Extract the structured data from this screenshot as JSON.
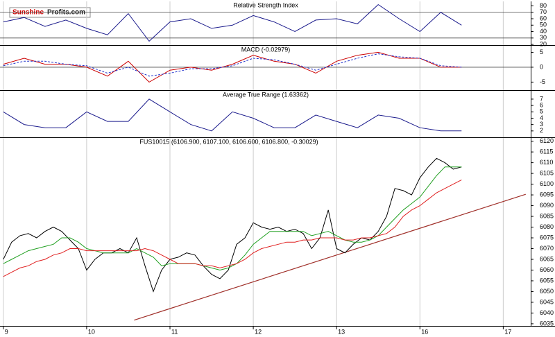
{
  "logo": {
    "part1": "Sunshine",
    "part2": "Profits.com"
  },
  "chart_data": [
    {
      "type": "line",
      "title": "Relative Strength Index",
      "x": [
        0,
        0.25,
        0.5,
        0.75,
        1,
        1.25,
        1.5,
        1.75,
        2,
        2.25,
        2.5,
        2.75,
        3,
        3.25,
        3.5,
        3.75,
        4,
        4.25,
        4.5,
        4.75,
        5,
        5.25,
        5.5
      ],
      "series": [
        {
          "name": "RSI",
          "color": "#1a1a8c",
          "values": [
            55,
            62,
            48,
            58,
            45,
            35,
            68,
            25,
            55,
            60,
            45,
            50,
            65,
            55,
            40,
            58,
            60,
            52,
            82,
            60,
            40,
            70,
            50
          ]
        }
      ],
      "xlim": [
        -0.04,
        6.33
      ],
      "ylim": [
        19,
        87
      ],
      "yticks": [
        80,
        70,
        60,
        50,
        40,
        30,
        20
      ],
      "levels": [
        70,
        30
      ]
    },
    {
      "type": "line",
      "title": "MACD (-0.02979)",
      "x": [
        0,
        0.25,
        0.5,
        0.75,
        1,
        1.25,
        1.5,
        1.75,
        2,
        2.25,
        2.5,
        2.75,
        3,
        3.25,
        3.5,
        3.75,
        4,
        4.25,
        4.5,
        4.75,
        5,
        5.25,
        5.5
      ],
      "series": [
        {
          "name": "MACD",
          "color": "#cc0000",
          "values": [
            1,
            3,
            1,
            1,
            0,
            -3,
            2,
            -5,
            -1,
            0,
            -1,
            1,
            4,
            2,
            1,
            -2,
            2,
            4,
            5,
            3,
            3,
            0,
            0
          ]
        },
        {
          "name": "Signal",
          "color": "#2233cc",
          "dashed": true,
          "values": [
            0.5,
            2,
            2,
            1,
            0.5,
            -2,
            0,
            -3,
            -2,
            -0.5,
            -0.5,
            0.5,
            3,
            2.5,
            1,
            -1,
            1,
            3,
            4.5,
            3.5,
            3,
            0.5,
            0
          ]
        }
      ],
      "xlim": [
        -0.04,
        6.33
      ],
      "ylim": [
        -7.7,
        7.2
      ],
      "yticks": [
        5,
        0,
        -5
      ],
      "levels": [
        0
      ]
    },
    {
      "type": "line",
      "title": "Average True Range (1.63362)",
      "x": [
        0,
        0.25,
        0.5,
        0.75,
        1,
        1.25,
        1.5,
        1.75,
        2,
        2.25,
        2.5,
        2.75,
        3,
        3.25,
        3.5,
        3.75,
        4,
        4.25,
        4.5,
        4.75,
        5,
        5.25,
        5.5
      ],
      "series": [
        {
          "name": "ATR",
          "color": "#1a1a8c",
          "values": [
            5,
            3,
            2.5,
            2.5,
            5,
            3.5,
            3.5,
            7,
            5,
            3,
            2,
            5,
            4,
            2.5,
            2.5,
            4.5,
            3.5,
            2.5,
            4.5,
            4,
            2.5,
            2,
            2
          ]
        }
      ],
      "xlim": [
        -0.04,
        6.33
      ],
      "ylim": [
        1.0,
        8.3
      ],
      "yticks": [
        7,
        6,
        5,
        4,
        3,
        2
      ]
    },
    {
      "type": "line",
      "title": "FUS10015 (6106.900, 6107.100, 6106.600, 6106.800, -0.30029)",
      "x": [
        0,
        0.1,
        0.2,
        0.3,
        0.4,
        0.5,
        0.6,
        0.7,
        0.8,
        0.9,
        1,
        1.1,
        1.2,
        1.3,
        1.4,
        1.5,
        1.6,
        1.7,
        1.8,
        1.9,
        2,
        2.1,
        2.2,
        2.3,
        2.4,
        2.5,
        2.6,
        2.7,
        2.8,
        2.9,
        3,
        3.1,
        3.2,
        3.3,
        3.4,
        3.5,
        3.6,
        3.7,
        3.8,
        3.9,
        4,
        4.1,
        4.2,
        4.3,
        4.4,
        4.5,
        4.6,
        4.7,
        4.8,
        4.9,
        5,
        5.1,
        5.2,
        5.3,
        5.4,
        5.5
      ],
      "series": [
        {
          "name": "Price",
          "color": "#000000",
          "values": [
            6065,
            6073,
            6076,
            6077,
            6075,
            6078,
            6080,
            6078,
            6074,
            6070,
            6060,
            6065,
            6068,
            6068,
            6070,
            6068,
            6075,
            6062,
            6050,
            6060,
            6065,
            6066,
            6068,
            6067,
            6062,
            6058,
            6056,
            6060,
            6072,
            6075,
            6082,
            6080,
            6079,
            6080,
            6078,
            6079,
            6077,
            6070,
            6075,
            6088,
            6070,
            6068,
            6072,
            6075,
            6074,
            6078,
            6085,
            6098,
            6097,
            6095,
            6103,
            6108,
            6112,
            6110,
            6107,
            6108
          ]
        },
        {
          "name": "MA short",
          "color": "#22a022",
          "values": [
            6063,
            6065,
            6067,
            6069,
            6070,
            6071,
            6072,
            6075,
            6075,
            6073,
            6070,
            6069,
            6068,
            6068,
            6068,
            6068,
            6070,
            6068,
            6066,
            6062,
            6063,
            6063,
            6063,
            6063,
            6062,
            6061,
            6060,
            6061,
            6063,
            6067,
            6072,
            6075,
            6078,
            6078,
            6078,
            6078,
            6078,
            6076,
            6077,
            6078,
            6076,
            6074,
            6073,
            6073,
            6074,
            6076,
            6080,
            6084,
            6088,
            6091,
            6094,
            6099,
            6104,
            6108,
            6108,
            6108
          ]
        },
        {
          "name": "MA long",
          "color": "#e02020",
          "values": [
            6057,
            6059,
            6061,
            6062,
            6064,
            6065,
            6067,
            6068,
            6070,
            6070,
            6069,
            6069,
            6069,
            6069,
            6069,
            6069,
            6069,
            6070,
            6069,
            6067,
            6065,
            6063,
            6063,
            6063,
            6062,
            6062,
            6061,
            6062,
            6063,
            6065,
            6068,
            6070,
            6071,
            6072,
            6073,
            6073,
            6074,
            6074,
            6075,
            6075,
            6075,
            6074,
            6074,
            6075,
            6075,
            6076,
            6077,
            6080,
            6085,
            6088,
            6090,
            6093,
            6096,
            6098,
            6100,
            6102
          ]
        }
      ],
      "trendline": {
        "color": "#a0302a",
        "x": [
          1.57,
          6.27
        ],
        "values": [
          6036.7,
          6095.3
        ]
      },
      "xlim": [
        -0.04,
        6.33
      ],
      "ylim": [
        6034,
        6121.5
      ],
      "yticks": [
        6120,
        6115,
        6110,
        6105,
        6100,
        6095,
        6090,
        6085,
        6080,
        6075,
        6070,
        6065,
        6060,
        6055,
        6050,
        6045,
        6040,
        6035
      ],
      "xticks": [
        {
          "value": 0,
          "label": "9"
        },
        {
          "value": 1,
          "label": "10"
        },
        {
          "value": 2,
          "label": "11"
        },
        {
          "value": 3,
          "label": "12"
        },
        {
          "value": 4,
          "label": "13"
        },
        {
          "value": 5,
          "label": "16"
        },
        {
          "value": 6,
          "label": "17"
        }
      ]
    }
  ]
}
